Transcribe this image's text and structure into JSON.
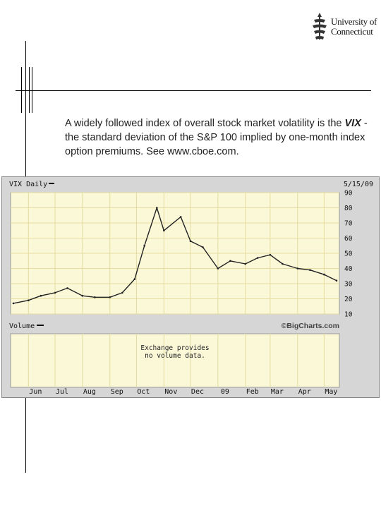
{
  "logo": {
    "line1": "University of",
    "line2": "Connecticut"
  },
  "caption": {
    "part1": "A widely followed index of overall stock market volatility is the ",
    "vix": "VIX",
    "part2": " - the standard deviation of the S&P 100 implied by one-month index option premiums. See www.cboe.com."
  },
  "chart": {
    "title": "VIX Daily",
    "date": "5/15/09",
    "volume_label": "Volume",
    "watermark": "©BigCharts.com",
    "volume_msg_line1": "Exchange provides",
    "volume_msg_line2": "no volume data."
  },
  "colors": {
    "panel_bg": "#fbf8d8",
    "grid": "#e4dca0",
    "line": "#222222",
    "frame": "#d6d6d6"
  },
  "chart_data": {
    "type": "line",
    "title": "VIX Daily",
    "ylim": [
      10,
      90
    ],
    "y_ticks": [
      10,
      20,
      30,
      40,
      50,
      60,
      70,
      80,
      90
    ],
    "y_tick_labels": [
      "10",
      "20",
      "30",
      "40",
      "50",
      "60",
      "70",
      "80",
      "90"
    ],
    "x_labels": [
      "Jun",
      "Jul",
      "Aug",
      "Sep",
      "Oct",
      "Nov",
      "Dec",
      "09",
      "Feb",
      "Mar",
      "Apr",
      "May"
    ],
    "grid": true,
    "series": [
      {
        "x": [
          "2008-05-15",
          "2008-06-01",
          "2008-06-15",
          "2008-07-01",
          "2008-07-15",
          "2008-08-01",
          "2008-08-15",
          "2008-09-01",
          "2008-09-15",
          "2008-09-29",
          "2008-10-10",
          "2008-10-24",
          "2008-11-01",
          "2008-11-20",
          "2008-12-01",
          "2008-12-15",
          "2009-01-01",
          "2009-01-15",
          "2009-02-01",
          "2009-02-15",
          "2009-03-01",
          "2009-03-15",
          "2009-04-01",
          "2009-04-15",
          "2009-05-01",
          "2009-05-15"
        ],
        "y": [
          17,
          19,
          22,
          24,
          27,
          22,
          21,
          21,
          24,
          33,
          55,
          80,
          65,
          74,
          58,
          54,
          40,
          45,
          43,
          47,
          49,
          43,
          40,
          39,
          36,
          32
        ]
      }
    ]
  }
}
